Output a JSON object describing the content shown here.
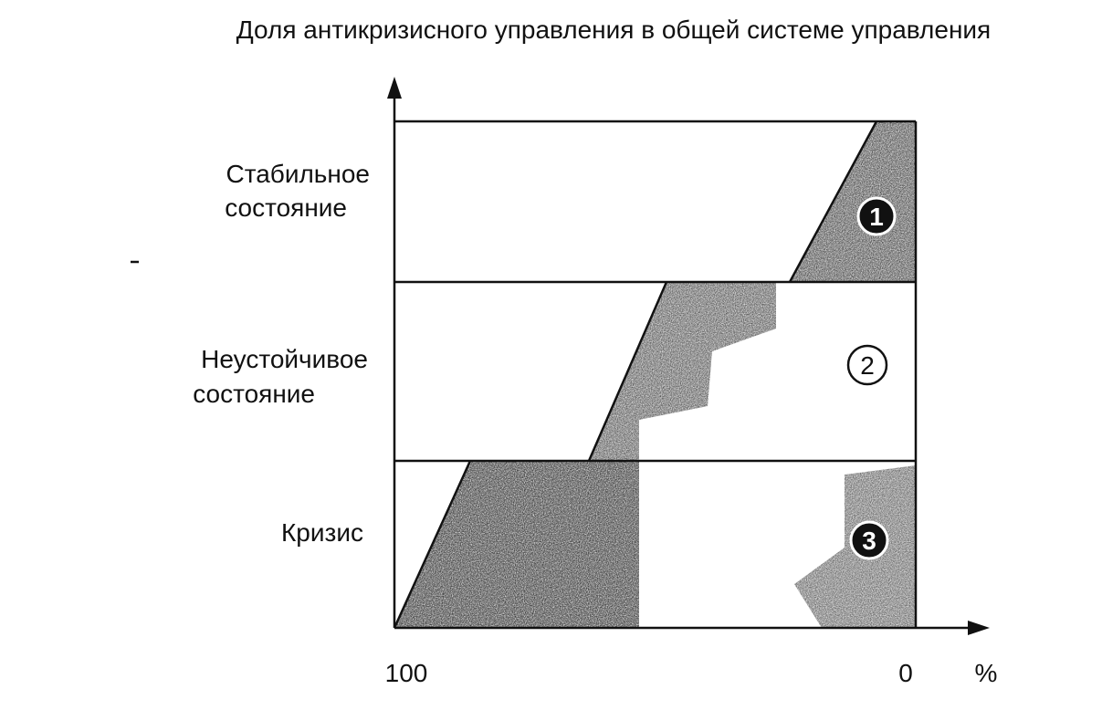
{
  "title": "Доля антикризисного управления в общей системе управления",
  "rows": [
    {
      "lines": [
        "Стабильное",
        "состояние"
      ]
    },
    {
      "lines": [
        "Неустойчивое",
        "состояние"
      ]
    },
    {
      "lines": [
        "Кризис"
      ]
    }
  ],
  "axis": {
    "left": "100",
    "right": "0",
    "unit": "%"
  },
  "zones": [
    "1",
    "2",
    "3"
  ]
}
